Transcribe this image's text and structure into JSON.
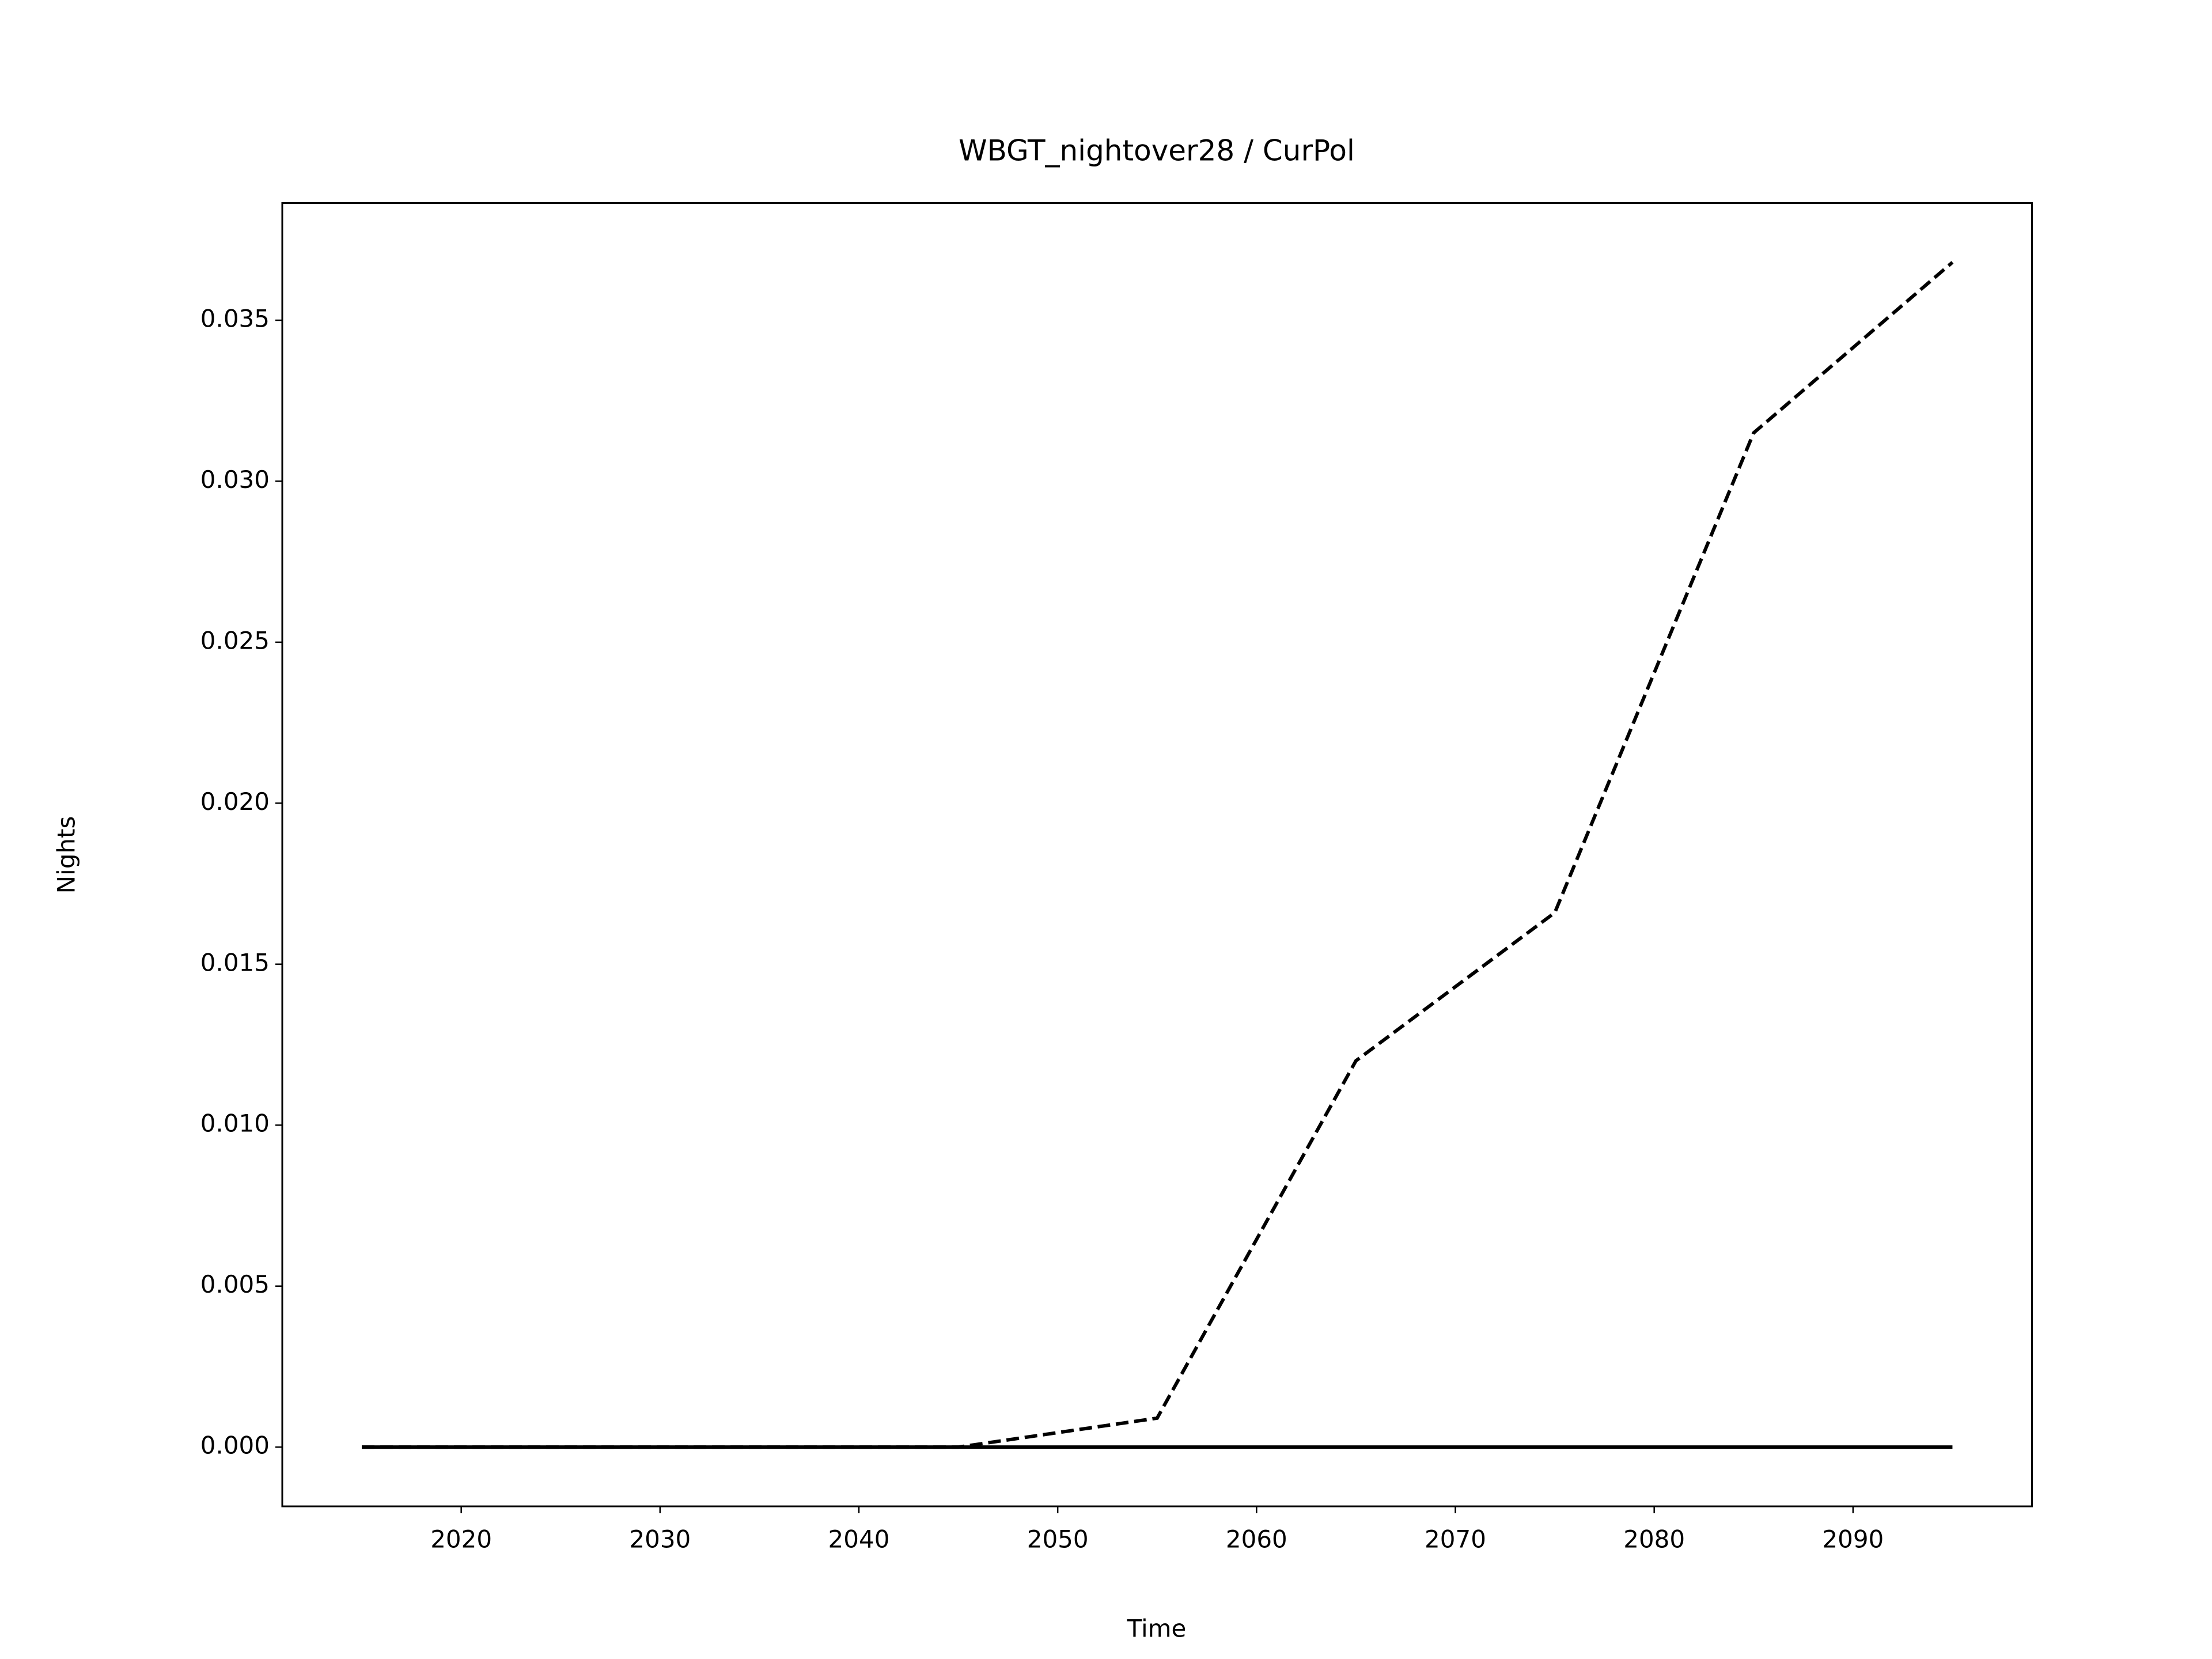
{
  "chart_data": {
    "type": "line",
    "title": "WBGT_nightover28 / CurPol",
    "x_label": "Time",
    "y_label": "Nights",
    "x": [
      2015,
      2025,
      2035,
      2045,
      2055,
      2065,
      2075,
      2085,
      2095
    ],
    "series": [
      {
        "color": "#000000",
        "dashed": true,
        "values": [
          0,
          0,
          0,
          0,
          0.0009,
          0.012,
          0.0166,
          0.0315,
          0.0368
        ]
      },
      {
        "color": "#000000",
        "dashed": false,
        "values": [
          0,
          0,
          0,
          0,
          0,
          0,
          0,
          0,
          0
        ]
      }
    ],
    "xlim": [
      2011,
      2099
    ],
    "xticks": [
      2020,
      2030,
      2040,
      2050,
      2060,
      2070,
      2080,
      2090
    ],
    "ylim": [
      -0.00184,
      0.03864
    ],
    "yticks": [
      {
        "value": 0,
        "label": "0.000"
      },
      {
        "value": 0.005,
        "label": "0.005"
      },
      {
        "value": 0.01,
        "label": "0.010"
      },
      {
        "value": 0.015,
        "label": "0.015"
      },
      {
        "value": 0.02,
        "label": "0.020"
      },
      {
        "value": 0.025,
        "label": "0.025"
      },
      {
        "value": 0.03,
        "label": "0.030"
      },
      {
        "value": 0.035,
        "label": "0.035"
      }
    ],
    "grid": false
  }
}
